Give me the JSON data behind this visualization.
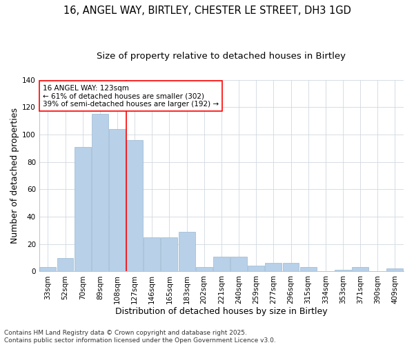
{
  "title_line1": "16, ANGEL WAY, BIRTLEY, CHESTER LE STREET, DH3 1GD",
  "title_line2": "Size of property relative to detached houses in Birtley",
  "xlabel": "Distribution of detached houses by size in Birtley",
  "ylabel": "Number of detached properties",
  "categories": [
    "33sqm",
    "52sqm",
    "70sqm",
    "89sqm",
    "108sqm",
    "127sqm",
    "146sqm",
    "165sqm",
    "183sqm",
    "202sqm",
    "221sqm",
    "240sqm",
    "259sqm",
    "277sqm",
    "296sqm",
    "315sqm",
    "334sqm",
    "353sqm",
    "371sqm",
    "390sqm",
    "409sqm"
  ],
  "values": [
    3,
    10,
    91,
    115,
    104,
    96,
    25,
    25,
    29,
    3,
    11,
    11,
    4,
    6,
    6,
    3,
    0,
    1,
    3,
    0,
    2
  ],
  "bar_color": "#b8d0e8",
  "bar_edge_color": "#9ab8d0",
  "grid_color": "#d0d8e0",
  "background_color": "#ffffff",
  "vline_color": "red",
  "annotation_text": "16 ANGEL WAY: 123sqm\n← 61% of detached houses are smaller (302)\n39% of semi-detached houses are larger (192) →",
  "annotation_box_color": "white",
  "annotation_box_edge_color": "red",
  "annotation_fontsize": 7.5,
  "ylim": [
    0,
    140
  ],
  "yticks": [
    0,
    20,
    40,
    60,
    80,
    100,
    120,
    140
  ],
  "footer_text": "Contains HM Land Registry data © Crown copyright and database right 2025.\nContains public sector information licensed under the Open Government Licence v3.0.",
  "title_fontsize": 10.5,
  "subtitle_fontsize": 9.5,
  "axis_label_fontsize": 9,
  "tick_fontsize": 7.5,
  "footer_fontsize": 6.5
}
